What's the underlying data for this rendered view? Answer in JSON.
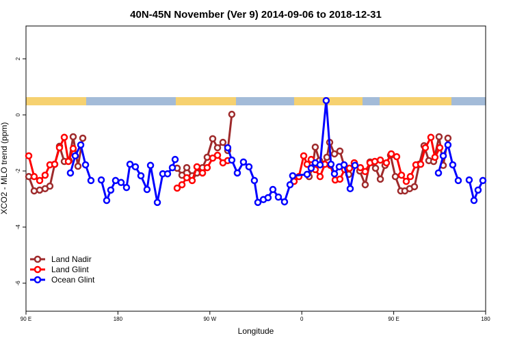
{
  "chart_data": {
    "type": "line",
    "title": "40N-45N November (Ver 9)   2014-09-06 to 2018-12-31",
    "xlabel": "Longitude",
    "ylabel": "XCO2 - MLO trend (ppm)",
    "xlim": [
      90,
      540
    ],
    "ylim": [
      -7,
      3.17
    ],
    "xticks": [
      {
        "value": 90,
        "label": "90 E"
      },
      180,
      {
        "value": 270,
        "label": "90 W"
      },
      {
        "value": 360,
        "label": "0"
      },
      {
        "value": 450,
        "label": "90 E"
      },
      {
        "value": 540,
        "label": "180"
      }
    ],
    "yticks": [
      -6,
      -4,
      -2,
      0,
      2
    ],
    "legend": "bottom-left",
    "series": [
      {
        "name": "Land Nadir",
        "color": "#9e2a2b",
        "x": [
          92.7,
          98.0,
          103.4,
          108.7,
          113.4,
          118.1,
          122.8,
          127.5,
          132.2,
          136.2,
          140.9,
          145.6,
          null,
          238.0,
          242.7,
          247.4,
          252.7,
          257.4,
          262.8,
          267.4,
          272.8,
          277.5,
          282.8,
          287.5,
          291.5,
          null,
          367.2,
          370.6,
          373.2,
          377.3,
          380.6,
          384.6,
          387.3,
          392.0,
          397.3,
          401.4,
          406.0,
          411.4,
          416.8,
          422.1,
          426.8,
          432.2,
          436.9,
          441.5,
          446.9,
          451.6,
          456.9,
          460.9,
          465.6,
          470.3,
          475.0,
          479.7,
          484.4,
          489.1,
          494.4,
          498.5,
          503.1
        ],
        "values": [
          -2.2,
          -2.71,
          -2.68,
          -2.63,
          -2.54,
          -1.76,
          -1.12,
          -1.66,
          -1.63,
          -0.78,
          -1.83,
          -0.83,
          null,
          -1.9,
          -2.15,
          -1.88,
          -2.17,
          -2.07,
          -1.88,
          -1.51,
          -0.85,
          -1.17,
          -0.98,
          -1.27,
          0.02,
          null,
          -2.2,
          -1.88,
          -1.15,
          -1.63,
          -1.76,
          -1.51,
          -0.98,
          -1.39,
          -1.29,
          -1.8,
          -2.12,
          -1.71,
          -2.0,
          -2.49,
          -1.68,
          -1.9,
          -2.29,
          -1.8,
          -1.44,
          -2.2,
          -2.71,
          -2.71,
          -2.63,
          -2.56,
          -1.76,
          -1.1,
          -1.63,
          -1.66,
          -0.78,
          -1.8,
          -0.83
        ]
      },
      {
        "name": "Land Glint",
        "color": "#ff0000",
        "x": [
          92.7,
          98.0,
          103.4,
          108.7,
          113.4,
          118.1,
          122.8,
          127.5,
          131.5,
          136.2,
          null,
          238.0,
          242.7,
          247.4,
          252.7,
          257.4,
          262.8,
          267.4,
          272.8,
          277.5,
          282.8,
          287.5,
          null,
          352.5,
          357.2,
          361.9,
          365.2,
          369.2,
          373.2,
          377.9,
          382.6,
          388.0,
          392.7,
          397.3,
          402.0,
          406.7,
          411.4,
          417.4,
          422.1,
          426.8,
          431.5,
          436.9,
          442.9,
          447.6,
          452.9,
          457.6,
          462.3,
          466.3,
          471.7,
          476.4,
          481.0,
          486.4,
          490.4,
          495.1
        ],
        "values": [
          -1.46,
          -2.2,
          -2.34,
          -2.15,
          -1.78,
          -1.76,
          -1.17,
          -0.8,
          -1.66,
          -1.2,
          null,
          -2.61,
          -2.49,
          -2.24,
          -2.34,
          -1.85,
          -2.07,
          -1.88,
          -1.54,
          -1.44,
          -1.71,
          -1.63,
          null,
          -2.37,
          -2.2,
          -1.46,
          -1.76,
          -1.59,
          -1.95,
          -2.2,
          -1.76,
          -1.8,
          -2.32,
          -2.29,
          -1.95,
          -1.9,
          -1.71,
          -1.88,
          -2.02,
          -1.71,
          -1.66,
          -1.61,
          -1.71,
          -1.39,
          -1.49,
          -2.15,
          -2.37,
          -2.2,
          -1.78,
          -1.76,
          -1.17,
          -0.8,
          -1.51,
          -1.17
        ]
      },
      {
        "name": "Ocean Glint",
        "color": "#0000ff",
        "x": [
          133.5,
          138.2,
          143.6,
          148.3,
          153.6,
          null,
          163.7,
          169.0,
          173.0,
          177.7,
          183.1,
          188.4,
          191.8,
          197.1,
          202.5,
          208.5,
          211.9,
          218.6,
          223.9,
          228.6,
          233.3,
          236.0,
          null,
          287.5,
          291.5,
          296.9,
          302.9,
          308.3,
          313.6,
          317.0,
          322.4,
          327.0,
          331.7,
          337.1,
          343.1,
          348.5,
          351.1,
          365.2,
          369.2,
          373.2,
          377.9,
          383.9,
          388.6,
          392.0,
          396.7,
          401.4,
          407.4,
          412.1,
          null,
          493.8,
          498.5,
          503.1,
          507.8,
          513.2,
          null,
          523.9,
          528.6,
          532.6,
          537.3
        ],
        "values": [
          -2.07,
          -1.46,
          -1.07,
          -1.78,
          -2.34,
          null,
          -2.32,
          -3.05,
          -2.68,
          -2.34,
          -2.41,
          -2.59,
          -1.76,
          -1.85,
          -2.17,
          -2.66,
          -1.8,
          -3.12,
          -2.1,
          -2.1,
          -1.88,
          -1.59,
          null,
          -1.17,
          -1.61,
          -2.07,
          -1.68,
          -1.85,
          -2.34,
          -3.12,
          -3.02,
          -2.95,
          -2.66,
          -2.93,
          -3.1,
          -2.49,
          -2.17,
          -2.12,
          -1.9,
          -1.71,
          -1.78,
          0.51,
          -1.76,
          -2.1,
          -1.85,
          -1.78,
          -2.63,
          -1.8,
          null,
          -2.07,
          -1.46,
          -1.07,
          -1.78,
          -2.34,
          null,
          -2.32,
          -3.05,
          -2.68,
          -2.34
        ]
      }
    ]
  }
}
